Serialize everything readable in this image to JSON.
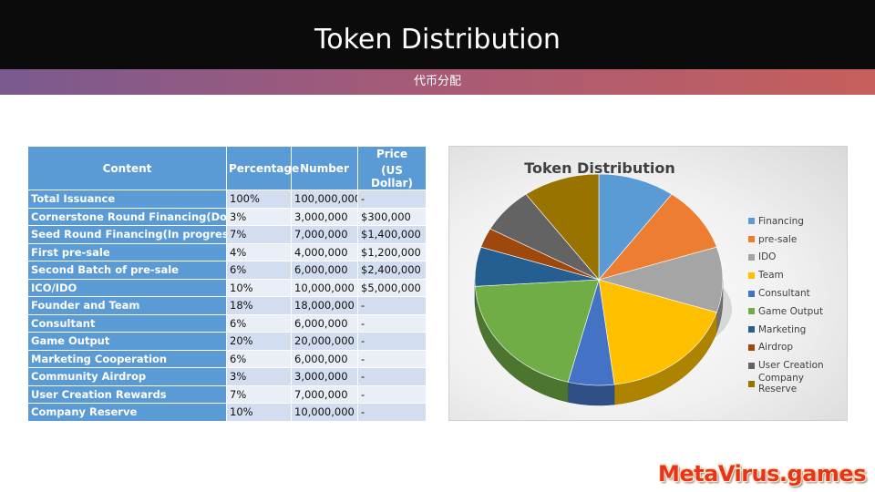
{
  "header": {
    "title": "Token Distribution",
    "subtitle": "代币分配"
  },
  "table": {
    "headers": {
      "content": "Content",
      "percentage": "Percentage",
      "number": "Number",
      "price_line1": "Price",
      "price_line2": "(US Dollar)"
    },
    "rows": [
      {
        "content": "Total Issuance",
        "percentage": "100%",
        "number": "100,000,000",
        "price": "-"
      },
      {
        "content": "Cornerstone Round Financing(Done)",
        "percentage": "3%",
        "number": "3,000,000",
        "price": "$300,000"
      },
      {
        "content": "Seed Round Financing(In progress)",
        "percentage": "7%",
        "number": "7,000,000",
        "price": "$1,400,000"
      },
      {
        "content": "First pre-sale",
        "percentage": "4%",
        "number": "4,000,000",
        "price": "$1,200,000"
      },
      {
        "content": "Second Batch of pre-sale",
        "percentage": "6%",
        "number": "6,000,000",
        "price": "$2,400,000"
      },
      {
        "content": "ICO/IDO",
        "percentage": "10%",
        "number": "10,000,000",
        "price": "$5,000,000"
      },
      {
        "content": "Founder and Team",
        "percentage": "18%",
        "number": "18,000,000",
        "price": "-"
      },
      {
        "content": "Consultant",
        "percentage": "6%",
        "number": "6,000,000",
        "price": "-"
      },
      {
        "content": "Game Output",
        "percentage": "20%",
        "number": "20,000,000",
        "price": "-"
      },
      {
        "content": "Marketing Cooperation",
        "percentage": "6%",
        "number": "6,000,000",
        "price": "-"
      },
      {
        "content": "Community Airdrop",
        "percentage": "3%",
        "number": "3,000,000",
        "price": "-"
      },
      {
        "content": "User Creation Rewards",
        "percentage": "7%",
        "number": "7,000,000",
        "price": "-"
      },
      {
        "content": "Company Reserve",
        "percentage": "10%",
        "number": "10,000,000",
        "price": "-"
      }
    ]
  },
  "chart_data": {
    "type": "pie",
    "title": "Token Distribution",
    "legend_position": "right",
    "slices": [
      {
        "label": "Financing",
        "value": 10,
        "color": "#5b9bd5"
      },
      {
        "label": "pre-sale",
        "value": 10,
        "color": "#ed7d31"
      },
      {
        "label": "IDO",
        "value": 10,
        "color": "#a5a5a5"
      },
      {
        "label": "Team",
        "value": 18,
        "color": "#ffc000"
      },
      {
        "label": "Consultant",
        "value": 6,
        "color": "#4472c4"
      },
      {
        "label": "Game Output",
        "value": 20,
        "color": "#70ad47"
      },
      {
        "label": "Marketing",
        "value": 6,
        "color": "#255e91"
      },
      {
        "label": "Airdrop",
        "value": 3,
        "color": "#9e480e"
      },
      {
        "label": "User Creation",
        "value": 7,
        "color": "#636363"
      },
      {
        "label": "Company Reserve",
        "value": 10,
        "color": "#997300"
      }
    ]
  },
  "brand": {
    "text": "MetaVirus.games"
  }
}
